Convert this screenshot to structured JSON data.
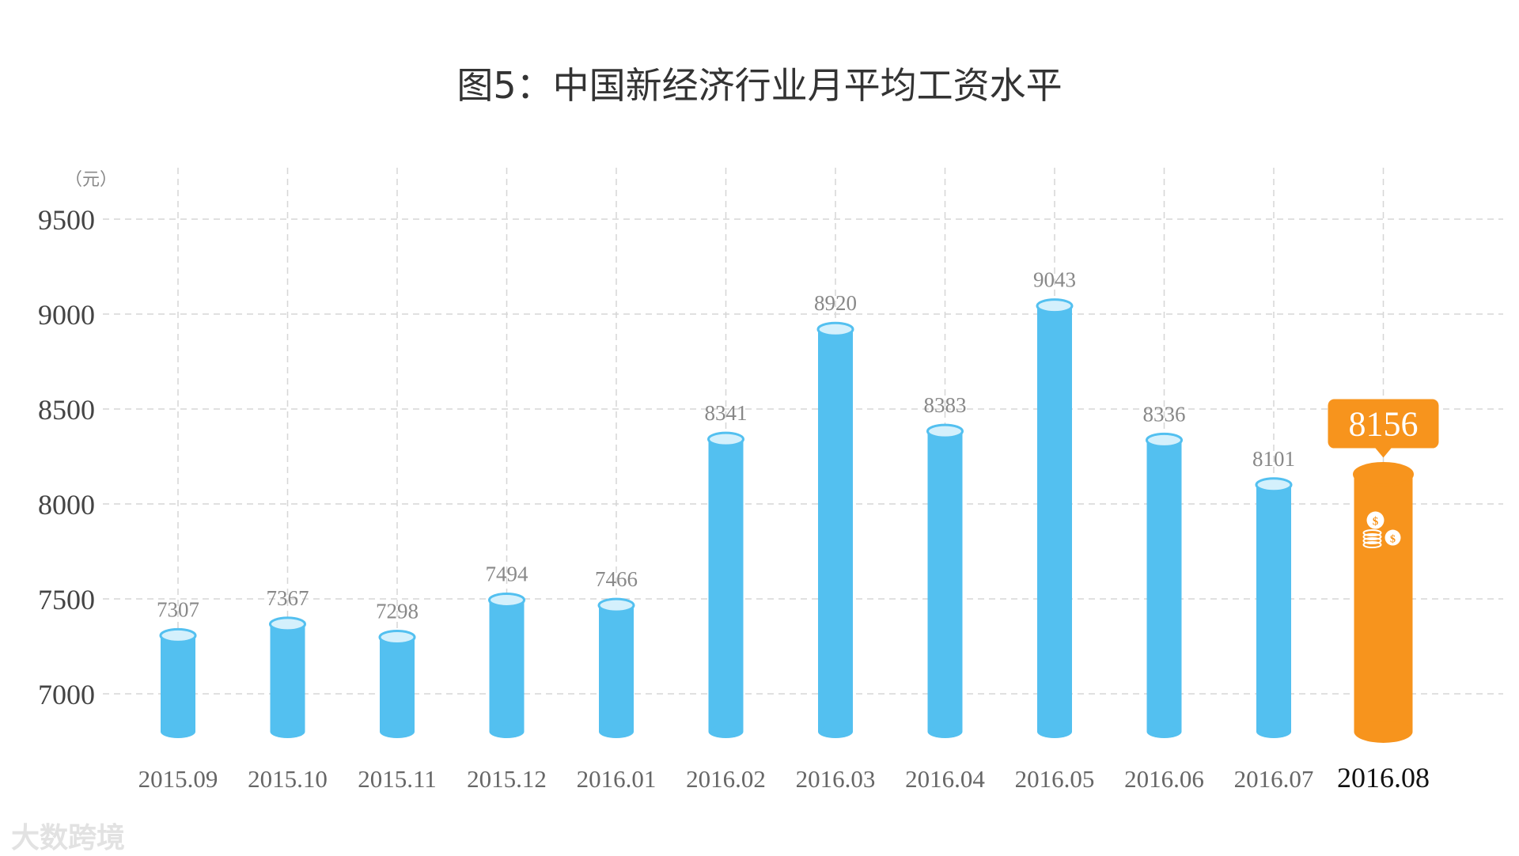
{
  "title": "图5：中国新经济行业月平均工资水平",
  "watermark": "大数跨境",
  "chart_data": {
    "type": "bar",
    "unit": "（元）",
    "categories": [
      "2015.09",
      "2015.10",
      "2015.11",
      "2015.12",
      "2016.01",
      "2016.02",
      "2016.03",
      "2016.04",
      "2016.05",
      "2016.06",
      "2016.07",
      "2016.08"
    ],
    "values": [
      7307,
      7367,
      7298,
      7494,
      7466,
      8341,
      8920,
      8383,
      9043,
      8336,
      8101,
      8156
    ],
    "ylim": [
      6700,
      9500
    ],
    "yticks": [
      7000,
      7500,
      8000,
      8500,
      9000,
      9500
    ],
    "grid": true,
    "highlight_index": 11,
    "highlight_icon": "coin-stack-icon",
    "colors": {
      "bar": "#53c0f0",
      "bar_top": "#d4f0fc",
      "highlight": "#f7941d",
      "grid": "#d6d6d6",
      "text": "#666666",
      "value_text": "#888888"
    }
  }
}
